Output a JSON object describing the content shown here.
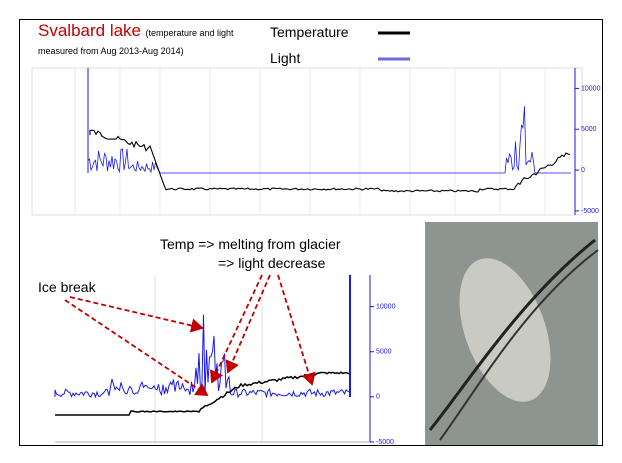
{
  "slide": {
    "title": "Svalbard lake",
    "subtitle": "(temperature and light measured from Aug 2013-Aug 2014)",
    "legend": [
      "Temperature",
      "Light"
    ]
  },
  "top_plot": {
    "y2lim": [
      -5500,
      12500
    ],
    "y2ticks": [
      10000,
      5000,
      0,
      -5000
    ]
  },
  "bottom_plot": {
    "y2lim": [
      -5000,
      13500
    ],
    "y2ticks": [
      10000,
      5000,
      0,
      -5000
    ],
    "annotations": [
      "Temp => melting from glacier",
      "=> light decrease",
      "Ice break"
    ]
  }
}
